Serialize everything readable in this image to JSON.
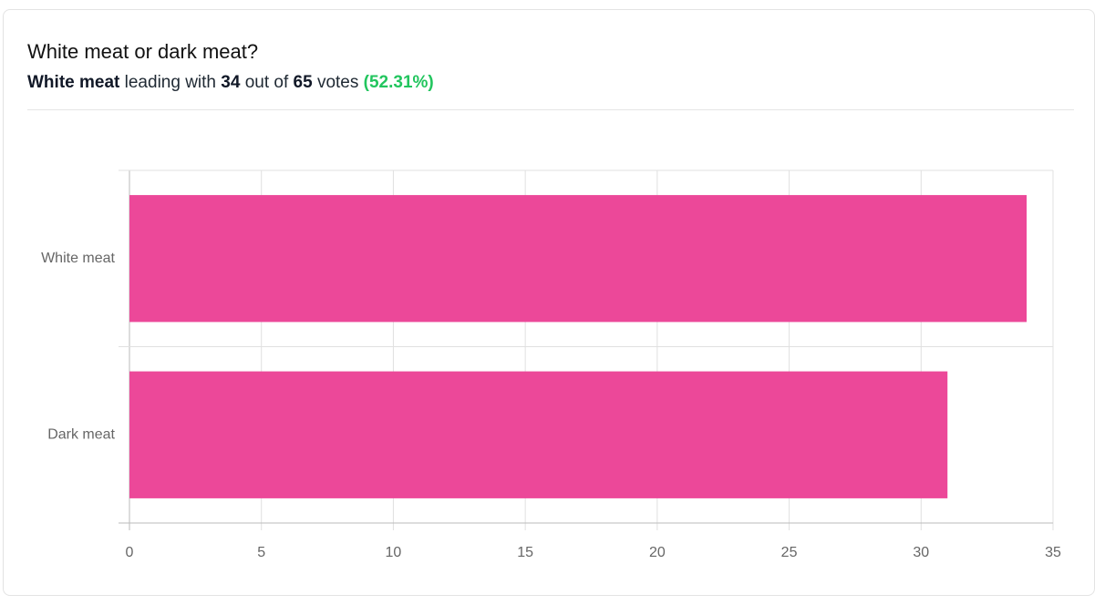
{
  "header": {
    "title": "White meat or dark meat?",
    "summary": {
      "leader": "White meat",
      "phrase_leading": "leading with",
      "leader_votes": "34",
      "phrase_out_of": "out of",
      "total_votes": "65",
      "phrase_votes": "votes",
      "percent": "(52.31%)"
    }
  },
  "chart_data": {
    "type": "hbar",
    "categories": [
      "White meat",
      "Dark meat"
    ],
    "values": [
      34,
      31
    ],
    "color": "#ec4899",
    "xlim": [
      0,
      35
    ],
    "xticks": [
      0,
      5,
      10,
      15,
      20,
      25,
      30,
      35
    ],
    "grid": true
  }
}
